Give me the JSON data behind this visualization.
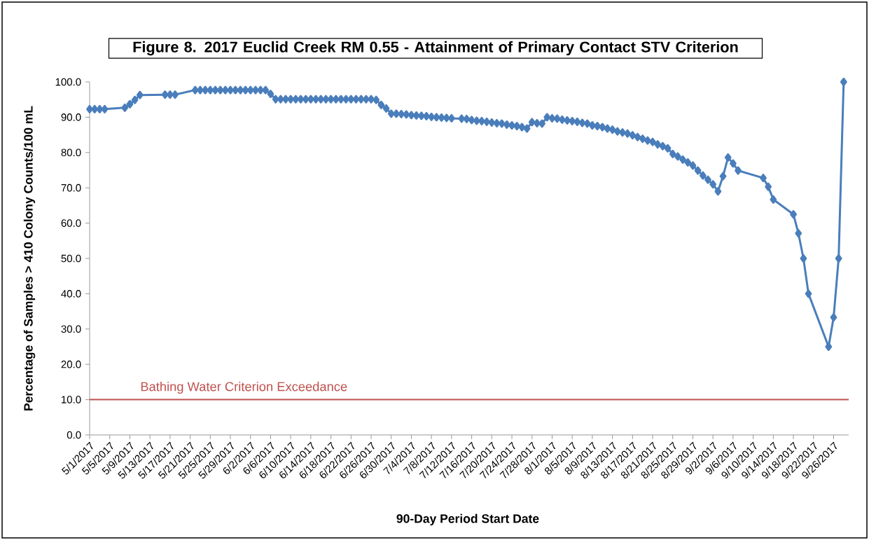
{
  "chart_data": {
    "type": "line",
    "title": "Figure 8. 2017 Euclid Creek RM 0.55 - Attainment of Primary Contact STV Criterion",
    "xlabel": "90-Day Period Start Date",
    "ylabel": "Percentage of Samples > 410 Colony Counts/100 mL",
    "x": [
      "2017-05-01",
      "2017-05-02",
      "2017-05-03",
      "2017-05-04",
      "2017-05-08",
      "2017-05-09",
      "2017-05-10",
      "2017-05-11",
      "2017-05-16",
      "2017-05-17",
      "2017-05-18",
      "2017-05-22",
      "2017-05-23",
      "2017-05-24",
      "2017-05-25",
      "2017-05-26",
      "2017-05-27",
      "2017-05-28",
      "2017-05-29",
      "2017-05-30",
      "2017-05-31",
      "2017-06-01",
      "2017-06-02",
      "2017-06-03",
      "2017-06-04",
      "2017-06-05",
      "2017-06-06",
      "2017-06-07",
      "2017-06-08",
      "2017-06-09",
      "2017-06-10",
      "2017-06-11",
      "2017-06-12",
      "2017-06-13",
      "2017-06-14",
      "2017-06-15",
      "2017-06-16",
      "2017-06-17",
      "2017-06-18",
      "2017-06-19",
      "2017-06-20",
      "2017-06-21",
      "2017-06-22",
      "2017-06-23",
      "2017-06-24",
      "2017-06-25",
      "2017-06-26",
      "2017-06-27",
      "2017-06-28",
      "2017-06-29",
      "2017-06-30",
      "2017-07-01",
      "2017-07-02",
      "2017-07-03",
      "2017-07-04",
      "2017-07-05",
      "2017-07-06",
      "2017-07-07",
      "2017-07-08",
      "2017-07-09",
      "2017-07-10",
      "2017-07-11",
      "2017-07-12",
      "2017-07-14",
      "2017-07-15",
      "2017-07-16",
      "2017-07-17",
      "2017-07-18",
      "2017-07-19",
      "2017-07-20",
      "2017-07-21",
      "2017-07-22",
      "2017-07-23",
      "2017-07-24",
      "2017-07-25",
      "2017-07-26",
      "2017-07-27",
      "2017-07-28",
      "2017-07-29",
      "2017-07-30",
      "2017-07-31",
      "2017-08-01",
      "2017-08-02",
      "2017-08-03",
      "2017-08-04",
      "2017-08-05",
      "2017-08-06",
      "2017-08-07",
      "2017-08-08",
      "2017-08-09",
      "2017-08-10",
      "2017-08-11",
      "2017-08-12",
      "2017-08-13",
      "2017-08-14",
      "2017-08-15",
      "2017-08-16",
      "2017-08-17",
      "2017-08-18",
      "2017-08-19",
      "2017-08-20",
      "2017-08-21",
      "2017-08-22",
      "2017-08-23",
      "2017-08-24",
      "2017-08-25",
      "2017-08-26",
      "2017-08-27",
      "2017-08-28",
      "2017-08-29",
      "2017-08-30",
      "2017-08-31",
      "2017-09-01",
      "2017-09-02",
      "2017-09-03",
      "2017-09-04",
      "2017-09-05",
      "2017-09-06",
      "2017-09-07",
      "2017-09-12",
      "2017-09-13",
      "2017-09-14",
      "2017-09-18",
      "2017-09-19",
      "2017-09-20",
      "2017-09-21",
      "2017-09-25",
      "2017-09-26",
      "2017-09-27",
      "2017-09-28"
    ],
    "series": [
      {
        "color": "#4a7ebb",
        "values": [
          92.3,
          92.3,
          92.3,
          92.3,
          92.7,
          93.7,
          94.9,
          96.3,
          96.4,
          96.4,
          96.4,
          97.7,
          97.7,
          97.7,
          97.7,
          97.7,
          97.7,
          97.7,
          97.7,
          97.7,
          97.7,
          97.7,
          97.7,
          97.7,
          97.7,
          97.7,
          96.6,
          95.1,
          95.1,
          95.1,
          95.1,
          95.1,
          95.1,
          95.1,
          95.1,
          95.1,
          95.1,
          95.1,
          95.1,
          95.1,
          95.1,
          95.1,
          95.1,
          95.1,
          95.1,
          95.1,
          95.1,
          94.9,
          93.5,
          92.5,
          91.0,
          91.0,
          90.9,
          90.8,
          90.6,
          90.5,
          90.4,
          90.3,
          90.1,
          90.0,
          89.9,
          89.8,
          89.7,
          89.6,
          89.5,
          89.2,
          89.0,
          88.9,
          88.7,
          88.5,
          88.3,
          88.2,
          87.9,
          87.7,
          87.5,
          87.2,
          86.8,
          88.6,
          88.3,
          88.2,
          90.0,
          89.7,
          89.6,
          89.3,
          89.1,
          88.9,
          88.7,
          88.4,
          88.2,
          87.7,
          87.5,
          87.2,
          86.8,
          86.5,
          86.0,
          85.7,
          85.4,
          84.9,
          84.4,
          83.9,
          83.4,
          83.0,
          82.3,
          81.8,
          81.2,
          79.6,
          78.9,
          78.0,
          77.2,
          76.3,
          74.9,
          73.5,
          72.3,
          71.0,
          69.0,
          73.3,
          78.6,
          76.9,
          74.9,
          72.8,
          70.3,
          66.7,
          62.5,
          57.1,
          50.0,
          40.0,
          25.0,
          33.3,
          50.0,
          100.0
        ]
      }
    ],
    "xlim": [
      "2017-05-01",
      "2017-09-29"
    ],
    "xticks": [
      {
        "value": "2017-05-01",
        "label": "5/1/2017"
      },
      {
        "value": "2017-05-05",
        "label": "5/5/2017"
      },
      {
        "value": "2017-05-09",
        "label": "5/9/2017"
      },
      {
        "value": "2017-05-13",
        "label": "5/13/2017"
      },
      {
        "value": "2017-05-17",
        "label": "5/17/2017"
      },
      {
        "value": "2017-05-21",
        "label": "5/21/2017"
      },
      {
        "value": "2017-05-25",
        "label": "5/25/2017"
      },
      {
        "value": "2017-05-29",
        "label": "5/29/2017"
      },
      {
        "value": "2017-06-02",
        "label": "6/2/2017"
      },
      {
        "value": "2017-06-06",
        "label": "6/6/2017"
      },
      {
        "value": "2017-06-10",
        "label": "6/10/2017"
      },
      {
        "value": "2017-06-14",
        "label": "6/14/2017"
      },
      {
        "value": "2017-06-18",
        "label": "6/18/2017"
      },
      {
        "value": "2017-06-22",
        "label": "6/22/2017"
      },
      {
        "value": "2017-06-26",
        "label": "6/26/2017"
      },
      {
        "value": "2017-06-30",
        "label": "6/30/2017"
      },
      {
        "value": "2017-07-04",
        "label": "7/4/2017"
      },
      {
        "value": "2017-07-08",
        "label": "7/8/2017"
      },
      {
        "value": "2017-07-12",
        "label": "7/12/2017"
      },
      {
        "value": "2017-07-16",
        "label": "7/16/2017"
      },
      {
        "value": "2017-07-20",
        "label": "7/20/2017"
      },
      {
        "value": "2017-07-24",
        "label": "7/24/2017"
      },
      {
        "value": "2017-07-28",
        "label": "7/28/2017"
      },
      {
        "value": "2017-08-01",
        "label": "8/1/2017"
      },
      {
        "value": "2017-08-05",
        "label": "8/5/2017"
      },
      {
        "value": "2017-08-09",
        "label": "8/9/2017"
      },
      {
        "value": "2017-08-13",
        "label": "8/13/2017"
      },
      {
        "value": "2017-08-17",
        "label": "8/17/2017"
      },
      {
        "value": "2017-08-21",
        "label": "8/21/2017"
      },
      {
        "value": "2017-08-25",
        "label": "8/25/2017"
      },
      {
        "value": "2017-08-29",
        "label": "8/29/2017"
      },
      {
        "value": "2017-09-02",
        "label": "9/2/2017"
      },
      {
        "value": "2017-09-06",
        "label": "9/6/2017"
      },
      {
        "value": "2017-09-10",
        "label": "9/10/2017"
      },
      {
        "value": "2017-09-14",
        "label": "9/14/2017"
      },
      {
        "value": "2017-09-18",
        "label": "9/18/2017"
      },
      {
        "value": "2017-09-22",
        "label": "9/22/2017"
      },
      {
        "value": "2017-09-26",
        "label": "9/26/2017"
      }
    ],
    "ylim": [
      0,
      100
    ],
    "yticks": [
      {
        "value": 0,
        "label": "0.0"
      },
      {
        "value": 10,
        "label": "10.0"
      },
      {
        "value": 20,
        "label": "20.0"
      },
      {
        "value": 30,
        "label": "30.0"
      },
      {
        "value": 40,
        "label": "40.0"
      },
      {
        "value": 50,
        "label": "50.0"
      },
      {
        "value": 60,
        "label": "60.0"
      },
      {
        "value": 70,
        "label": "70.0"
      },
      {
        "value": 80,
        "label": "80.0"
      },
      {
        "value": 90,
        "label": "90.0"
      },
      {
        "value": 100,
        "label": "100.0"
      }
    ],
    "ref_lines": [
      {
        "axis": "y",
        "value": 10,
        "label": "Bathing Water Criterion Exceedance",
        "color": "#c0504d"
      }
    ],
    "marker": "diamond",
    "line_style": "solid",
    "grid": false
  }
}
